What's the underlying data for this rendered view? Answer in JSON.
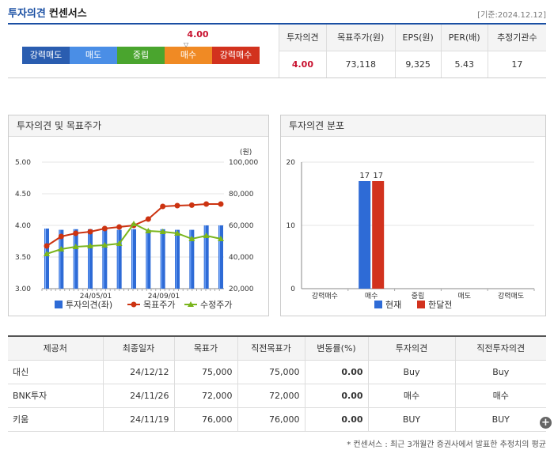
{
  "header": {
    "title": "투자의견",
    "subtitle": "컨센서스",
    "date": "[기준:2024.12.12]"
  },
  "meter": {
    "labels": [
      "강력매도",
      "매도",
      "중립",
      "매수",
      "강력매수"
    ],
    "colors": [
      "#2a5db0",
      "#4a8ee6",
      "#4aa52e",
      "#f08a24",
      "#d2321e"
    ],
    "value": "4.00"
  },
  "summary": {
    "headers": [
      "투자의견",
      "목표주가(원)",
      "EPS(원)",
      "PER(배)",
      "추정기관수"
    ],
    "values": [
      "4.00",
      "73,118",
      "9,325",
      "5.43",
      "17"
    ]
  },
  "panels": {
    "left_title": "투자의견 및 목표주가",
    "right_title": "투자의견 분포"
  },
  "chart_data": [
    {
      "type": "bar",
      "title": "투자의견 및 목표주가",
      "left_axis": {
        "ticks": [
          "5.00",
          "4.50",
          "4.00",
          "3.50",
          "3.00"
        ],
        "range": [
          3.0,
          5.0
        ]
      },
      "right_axis": {
        "unit": "(원)",
        "ticks": [
          "100,000",
          "80,000",
          "60,000",
          "40,000",
          "20,000"
        ],
        "range": [
          20000,
          100000
        ]
      },
      "x_ticks": [
        "24/05/01",
        "24/09/01"
      ],
      "series": [
        {
          "name": "투자의견(좌)",
          "type": "bar",
          "color": "#2e6bd6",
          "values": [
            3.95,
            3.93,
            3.94,
            3.94,
            3.94,
            3.93,
            3.94,
            3.93,
            3.94,
            3.93,
            3.93,
            4.0,
            4.0
          ]
        },
        {
          "name": "목표주가",
          "type": "line",
          "color": "#cc3311",
          "values": [
            47000,
            53000,
            55000,
            56000,
            58000,
            59000,
            60000,
            64000,
            72000,
            72500,
            72800,
            73500,
            73500
          ]
        },
        {
          "name": "수정주가",
          "type": "line",
          "color": "#7ab51d",
          "values": [
            42000,
            45000,
            46500,
            47000,
            47500,
            48500,
            61000,
            56500,
            56000,
            55000,
            51500,
            53500,
            51500
          ]
        }
      ]
    },
    {
      "type": "bar",
      "title": "투자의견 분포",
      "categories": [
        "강력매수",
        "매수",
        "중립",
        "매도",
        "강력매도"
      ],
      "y_ticks": [
        "20",
        "10",
        "0"
      ],
      "ylim": [
        0,
        20
      ],
      "series": [
        {
          "name": "현재",
          "color": "#2e6bd6",
          "values": [
            0,
            17,
            0,
            0,
            0
          ]
        },
        {
          "name": "한달전",
          "color": "#d2321e",
          "values": [
            0,
            17,
            0,
            0,
            0
          ]
        }
      ]
    }
  ],
  "brokers": {
    "headers": [
      "제공처",
      "최종일자",
      "목표가",
      "직전목표가",
      "변동률(%)",
      "투자의견",
      "직전투자의견"
    ],
    "rows": [
      [
        "대신",
        "24/12/12",
        "75,000",
        "75,000",
        "0.00",
        "Buy",
        "Buy"
      ],
      [
        "BNK투자",
        "24/11/26",
        "72,000",
        "72,000",
        "0.00",
        "매수",
        "매수"
      ],
      [
        "키움",
        "24/11/19",
        "76,000",
        "76,000",
        "0.00",
        "BUY",
        "BUY"
      ]
    ]
  },
  "footnote": "* 컨센서스 : 최근 3개월간 증권사에서 발표한 추정치의 평균"
}
